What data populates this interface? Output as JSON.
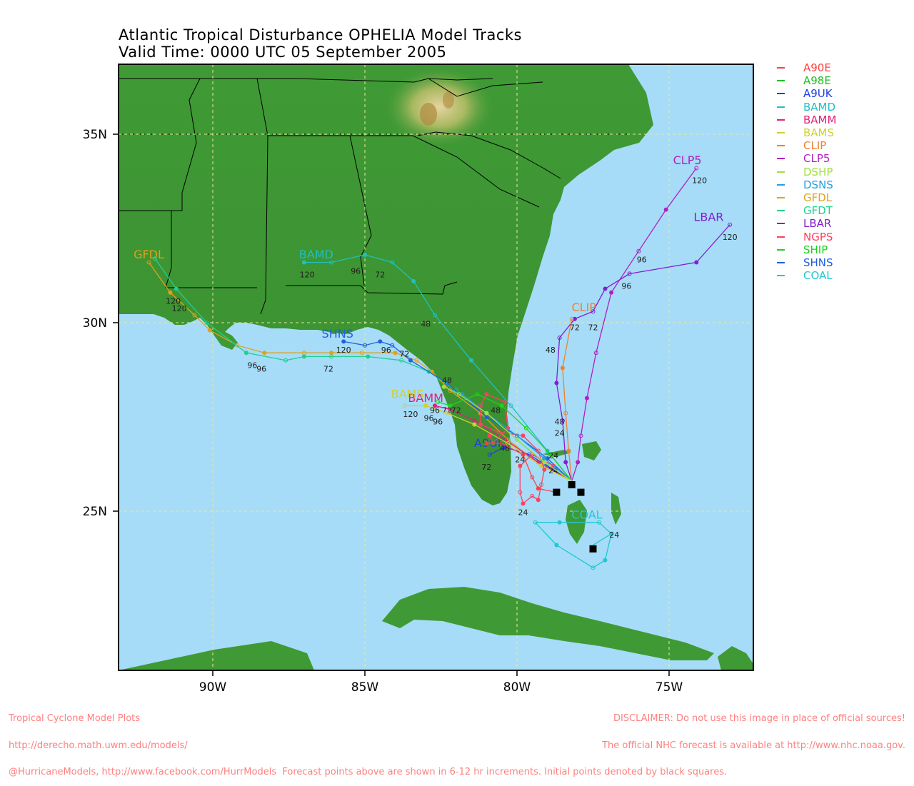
{
  "title": "Atlantic Tropical Disturbance OPHELIA Model Tracks",
  "subtitle": "Valid Time: 0000 UTC 05 September 2005",
  "axes": {
    "lon_ticks": [
      "90W",
      "85W",
      "80W",
      "75W"
    ],
    "lat_ticks": [
      "35N",
      "30N",
      "25N"
    ]
  },
  "legend": [
    {
      "name": "A90E",
      "color": "#ff4040"
    },
    {
      "name": "A98E",
      "color": "#20c020"
    },
    {
      "name": "A9UK",
      "color": "#2040e0"
    },
    {
      "name": "BAMD",
      "color": "#20c0c0"
    },
    {
      "name": "BAMM",
      "color": "#e0207a"
    },
    {
      "name": "BAMS",
      "color": "#d0d030"
    },
    {
      "name": "CLIP",
      "color": "#f08030"
    },
    {
      "name": "CLP5",
      "color": "#b020c0"
    },
    {
      "name": "DSHP",
      "color": "#a0e040"
    },
    {
      "name": "DSNS",
      "color": "#20a0e0"
    },
    {
      "name": "GFDL",
      "color": "#e0a020"
    },
    {
      "name": "GFDT",
      "color": "#20d090"
    },
    {
      "name": "LBAR",
      "color": "#8020d0"
    },
    {
      "name": "NGPS",
      "color": "#ff4060"
    },
    {
      "name": "SHIP",
      "color": "#20d020"
    },
    {
      "name": "SHNS",
      "color": "#2060e0"
    },
    {
      "name": "COAL",
      "color": "#20c8d0"
    }
  ],
  "tracks": [
    {
      "model": "CLP5",
      "color": "#b020c0",
      "label": "CLP5",
      "label_at": [
        -74.4,
        34.2
      ],
      "points": [
        [
          -78.2,
          25.8
        ],
        [
          -78.0,
          26.3
        ],
        [
          -77.9,
          27.0
        ],
        [
          -77.7,
          28.0
        ],
        [
          -77.4,
          29.2
        ],
        [
          -76.9,
          30.8
        ],
        [
          -76.0,
          31.9
        ],
        [
          -75.1,
          33.0
        ],
        [
          -74.1,
          34.1
        ]
      ],
      "hours": [
        {
          "h": "120",
          "at": [
            -74.0,
            33.7
          ]
        },
        {
          "h": "96",
          "at": [
            -75.9,
            31.6
          ]
        }
      ]
    },
    {
      "model": "LBAR",
      "color": "#8020d0",
      "label": "LBAR",
      "label_at": [
        -73.7,
        32.7
      ],
      "points": [
        [
          -78.2,
          25.8
        ],
        [
          -78.4,
          26.3
        ],
        [
          -78.5,
          27.4
        ],
        [
          -78.7,
          28.4
        ],
        [
          -78.6,
          29.6
        ],
        [
          -78.1,
          30.1
        ],
        [
          -77.5,
          30.3
        ],
        [
          -77.1,
          30.9
        ],
        [
          -76.3,
          31.3
        ],
        [
          -74.1,
          31.6
        ],
        [
          -73.0,
          32.6
        ]
      ],
      "hours": [
        {
          "h": "120",
          "at": [
            -73.0,
            32.2
          ]
        },
        {
          "h": "96",
          "at": [
            -76.4,
            30.9
          ]
        },
        {
          "h": "72",
          "at": [
            -77.5,
            29.8
          ]
        },
        {
          "h": "48",
          "at": [
            -78.9,
            29.2
          ]
        },
        {
          "h": "24",
          "at": [
            -78.6,
            27.0
          ]
        }
      ]
    },
    {
      "model": "CLIP",
      "color": "#f08030",
      "label": "CLIP",
      "label_at": [
        -77.8,
        30.3
      ],
      "points": [
        [
          -78.2,
          25.8
        ],
        [
          -78.3,
          26.6
        ],
        [
          -78.4,
          27.6
        ],
        [
          -78.5,
          28.8
        ],
        [
          -78.2,
          30.1
        ]
      ],
      "hours": [
        {
          "h": "72",
          "at": [
            -78.1,
            29.8
          ]
        },
        {
          "h": "48",
          "at": [
            -78.6,
            27.3
          ]
        }
      ]
    },
    {
      "model": "BAMD",
      "color": "#20c0c0",
      "label": "BAMD",
      "label_at": [
        -86.6,
        31.7
      ],
      "points": [
        [
          -78.2,
          25.8
        ],
        [
          -79.0,
          26.6
        ],
        [
          -80.2,
          27.8
        ],
        [
          -81.5,
          29.0
        ],
        [
          -82.7,
          30.2
        ],
        [
          -83.4,
          31.1
        ],
        [
          -84.1,
          31.6
        ],
        [
          -85.0,
          31.8
        ],
        [
          -86.1,
          31.6
        ],
        [
          -87.0,
          31.6
        ]
      ],
      "hours": [
        {
          "h": "120",
          "at": [
            -86.9,
            31.2
          ]
        },
        {
          "h": "96",
          "at": [
            -85.3,
            31.3
          ]
        },
        {
          "h": "72",
          "at": [
            -84.5,
            31.2
          ]
        },
        {
          "h": "48",
          "at": [
            -83.0,
            29.9
          ]
        }
      ]
    },
    {
      "model": "GFDL",
      "color": "#e0a020",
      "label": "GFDL",
      "label_at": [
        -92.1,
        31.7
      ],
      "points": [
        [
          -78.2,
          25.8
        ],
        [
          -79.2,
          26.2
        ],
        [
          -80.3,
          26.9
        ],
        [
          -81.2,
          27.6
        ],
        [
          -82.2,
          28.2
        ],
        [
          -82.8,
          28.7
        ],
        [
          -83.3,
          29.0
        ],
        [
          -84.0,
          29.2
        ],
        [
          -85.1,
          29.2
        ],
        [
          -86.1,
          29.2
        ],
        [
          -87.0,
          29.2
        ],
        [
          -88.3,
          29.2
        ],
        [
          -89.2,
          29.4
        ],
        [
          -90.1,
          29.8
        ],
        [
          -90.6,
          30.2
        ],
        [
          -91.4,
          30.8
        ],
        [
          -92.1,
          31.6
        ]
      ],
      "hours": [
        {
          "h": "120",
          "at": [
            -91.3,
            30.5
          ]
        },
        {
          "h": "96",
          "at": [
            -88.7,
            28.8
          ]
        }
      ]
    },
    {
      "model": "GFDT",
      "color": "#20d090",
      "label": "",
      "label_at": null,
      "points": [
        [
          -78.2,
          25.8
        ],
        [
          -79.0,
          26.2
        ],
        [
          -80.0,
          26.9
        ],
        [
          -81.0,
          27.6
        ],
        [
          -82.0,
          28.2
        ],
        [
          -82.9,
          28.7
        ],
        [
          -83.8,
          29.0
        ],
        [
          -84.9,
          29.1
        ],
        [
          -86.1,
          29.1
        ],
        [
          -87.0,
          29.1
        ],
        [
          -87.6,
          29.0
        ],
        [
          -88.9,
          29.2
        ],
        [
          -90.2,
          30.0
        ],
        [
          -91.2,
          30.9
        ],
        [
          -91.9,
          31.7
        ]
      ],
      "hours": [
        {
          "h": "120",
          "at": [
            -91.1,
            30.3
          ]
        },
        {
          "h": "96",
          "at": [
            -88.4,
            28.7
          ]
        },
        {
          "h": "72",
          "at": [
            -86.2,
            28.7
          ]
        }
      ]
    },
    {
      "model": "SHNS",
      "color": "#2060e0",
      "label": "SHNS",
      "label_at": [
        -85.9,
        29.6
      ],
      "points": [
        [
          -78.2,
          25.8
        ],
        [
          -79.0,
          26.4
        ],
        [
          -80.0,
          27.0
        ],
        [
          -81.0,
          27.5
        ],
        [
          -82.3,
          28.4
        ],
        [
          -83.5,
          29.0
        ],
        [
          -84.1,
          29.4
        ],
        [
          -84.5,
          29.5
        ],
        [
          -85.0,
          29.4
        ],
        [
          -85.7,
          29.5
        ]
      ],
      "hours": [
        {
          "h": "120",
          "at": [
            -85.7,
            29.2
          ]
        },
        {
          "h": "96",
          "at": [
            -84.3,
            29.2
          ]
        },
        {
          "h": "72",
          "at": [
            -83.7,
            29.1
          ]
        },
        {
          "h": "48",
          "at": [
            -82.3,
            28.4
          ]
        },
        {
          "h": "24",
          "at": [
            -79.9,
            26.3
          ]
        }
      ]
    },
    {
      "model": "A9UK",
      "color": "#2040e0",
      "label": "A9UK",
      "label_at": [
        -80.9,
        26.7
      ],
      "points": [
        [
          -78.2,
          25.8
        ],
        [
          -78.8,
          26.1
        ],
        [
          -79.6,
          26.5
        ],
        [
          -80.4,
          26.7
        ],
        [
          -80.9,
          26.5
        ]
      ],
      "hours": [
        {
          "h": "72",
          "at": [
            -81.0,
            26.1
          ]
        },
        {
          "h": "48",
          "at": [
            -80.4,
            26.6
          ]
        }
      ]
    },
    {
      "model": "BAMM",
      "color": "#e0207a",
      "label": "BAMM",
      "label_at": [
        -83.0,
        27.9
      ],
      "points": [
        [
          -78.2,
          25.8
        ],
        [
          -79.3,
          26.3
        ],
        [
          -80.4,
          26.9
        ],
        [
          -81.4,
          27.4
        ],
        [
          -82.2,
          27.7
        ],
        [
          -82.7,
          27.8
        ]
      ],
      "hours": [
        {
          "h": "96",
          "at": [
            -82.9,
            27.4
          ]
        },
        {
          "h": "72",
          "at": [
            -82.3,
            27.6
          ]
        }
      ]
    },
    {
      "model": "BAMS",
      "color": "#d0d030",
      "label": "BAMS",
      "label_at": [
        -83.6,
        28.0
      ],
      "points": [
        [
          -78.2,
          25.8
        ],
        [
          -79.2,
          26.2
        ],
        [
          -80.3,
          26.8
        ],
        [
          -81.4,
          27.3
        ],
        [
          -82.3,
          27.6
        ],
        [
          -83.0,
          27.8
        ],
        [
          -83.7,
          27.8
        ]
      ],
      "hours": [
        {
          "h": "120",
          "at": [
            -83.5,
            27.5
          ]
        },
        {
          "h": "96",
          "at": [
            -82.7,
            27.6
          ]
        }
      ]
    },
    {
      "model": "SHIP",
      "color": "#20d020",
      "label": "",
      "label_at": null,
      "points": [
        [
          -78.2,
          25.8
        ],
        [
          -78.9,
          26.5
        ],
        [
          -79.7,
          27.2
        ],
        [
          -80.5,
          27.8
        ],
        [
          -81.3,
          28.1
        ],
        [
          -82.2,
          27.8
        ],
        [
          -82.6,
          27.9
        ]
      ],
      "hours": [
        {
          "h": "96",
          "at": [
            -82.6,
            27.3
          ]
        },
        {
          "h": "72",
          "at": [
            -82.0,
            27.6
          ]
        },
        {
          "h": "48",
          "at": [
            -80.7,
            27.6
          ]
        },
        {
          "h": "24",
          "at": [
            -78.8,
            26.4
          ]
        }
      ]
    },
    {
      "model": "NGPS",
      "color": "#ff4060",
      "label": "",
      "label_at": null,
      "points": [
        [
          -78.2,
          25.8
        ],
        [
          -78.8,
          26.2
        ],
        [
          -79.5,
          26.5
        ],
        [
          -79.9,
          26.2
        ],
        [
          -79.9,
          25.5
        ],
        [
          -79.8,
          25.2
        ],
        [
          -79.5,
          25.4
        ],
        [
          -79.3,
          25.3
        ],
        [
          -79.2,
          25.7
        ],
        [
          -79.1,
          26.1
        ],
        [
          -79.3,
          26.6
        ],
        [
          -79.8,
          27.0
        ],
        [
          -80.6,
          27.1
        ],
        [
          -81.2,
          27.3
        ],
        [
          -81.2,
          27.8
        ],
        [
          -81.0,
          28.1
        ],
        [
          -80.4,
          27.9
        ],
        [
          -80.3,
          27.2
        ],
        [
          -80.8,
          26.8
        ],
        [
          -80.9,
          27.0
        ]
      ],
      "hours": [
        {
          "h": "24",
          "at": [
            -79.8,
            24.9
          ]
        },
        {
          "h": "24",
          "at": [
            -78.8,
            26.0
          ]
        }
      ]
    },
    {
      "model": "A90E",
      "color": "#ff4040",
      "label": "",
      "label_at": null,
      "points": [
        [
          -78.7,
          25.5
        ],
        [
          -79.3,
          25.6
        ],
        [
          -79.5,
          25.9
        ],
        [
          -79.8,
          26.5
        ],
        [
          -80.5,
          26.8
        ],
        [
          -81.0,
          26.8
        ]
      ],
      "hours": []
    },
    {
      "model": "DSNS",
      "color": "#20a0e0",
      "label": "",
      "label_at": null,
      "points": [
        [
          -78.2,
          25.8
        ],
        [
          -79.1,
          26.4
        ],
        [
          -80.0,
          27.0
        ],
        [
          -81.0,
          27.6
        ],
        [
          -81.8,
          28.1
        ],
        [
          -82.4,
          28.3
        ]
      ],
      "hours": []
    },
    {
      "model": "DSHP",
      "color": "#a0e040",
      "label": "",
      "label_at": null,
      "points": [
        [
          -78.2,
          25.8
        ],
        [
          -79.1,
          26.3
        ],
        [
          -80.0,
          26.9
        ],
        [
          -81.0,
          27.6
        ],
        [
          -81.9,
          28.1
        ],
        [
          -82.4,
          28.3
        ]
      ],
      "hours": []
    },
    {
      "model": "COAL",
      "color": "#20c8d0",
      "label": "COAL",
      "label_at": [
        -77.7,
        24.8
      ],
      "points": [
        [
          -77.5,
          24.1
        ],
        [
          -76.9,
          24.4
        ],
        [
          -77.3,
          24.7
        ],
        [
          -78.6,
          24.7
        ],
        [
          -79.4,
          24.7
        ],
        [
          -78.7,
          24.1
        ],
        [
          -77.5,
          23.5
        ],
        [
          -77.1,
          23.7
        ],
        [
          -76.9,
          24.4
        ]
      ],
      "hours": [
        {
          "h": "24",
          "at": [
            -76.8,
            24.3
          ]
        }
      ]
    }
  ],
  "initial_points": [
    [
      -78.2,
      25.7
    ],
    [
      -78.7,
      25.5
    ],
    [
      -77.9,
      25.5
    ],
    [
      -77.5,
      24.0
    ]
  ],
  "footer_left": [
    "Tropical Cyclone Model Plots",
    "http://derecho.math.uwm.edu/models/",
    "@HurricaneModels, http://www.facebook.com/HurrModels  Forecast points above are shown in 6-12 hr increments. Initial points denoted by black squares."
  ],
  "footer_right": [
    "DISCLAIMER: Do not use this image in place of official sources!",
    "The official NHC forecast is available at http://www.nhc.noaa.gov.",
    ""
  ]
}
